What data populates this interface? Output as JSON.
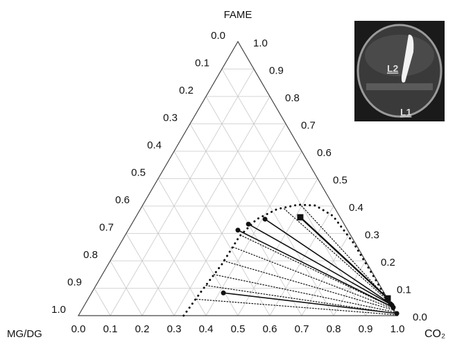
{
  "chart_data": {
    "type": "ternary",
    "axes": {
      "bottom": {
        "label": "CO₂",
        "ticks": [
          {
            "value": 0,
            "label": "0.0"
          },
          0.1,
          0.2,
          0.3,
          0.4,
          0.5,
          0.6,
          0.7,
          0.8,
          0.9,
          {
            "value": 1,
            "label": "1.0"
          }
        ]
      },
      "right": {
        "label": "FAME",
        "ticks": [
          {
            "value": 0,
            "label": "0.0"
          },
          0.1,
          0.2,
          0.3,
          0.4,
          0.5,
          0.6,
          0.7,
          0.8,
          0.9,
          {
            "value": 1,
            "label": "1.0"
          }
        ]
      },
      "left": {
        "label": "MG/DG",
        "ticks": [
          {
            "value": 0,
            "label": "0.0"
          },
          0.1,
          0.2,
          0.3,
          0.4,
          0.5,
          0.6,
          0.7,
          0.8,
          0.9,
          {
            "value": 1,
            "label": "1.0"
          }
        ]
      }
    },
    "grid": true,
    "series": [
      {
        "style": "dotted",
        "marker": "dot",
        "color": "#111",
        "co2": [
          0.33,
          0.341,
          0.356,
          0.36,
          0.383,
          0.429,
          0.487,
          0.542,
          0.616,
          0.731,
          0.859,
          0.947,
          1.0
        ],
        "fame": [
          0,
          0.088,
          0.188,
          0.289,
          0.352,
          0.389,
          0.405,
          0.402,
          0.364,
          0.264,
          0.138,
          0.05,
          0
        ]
      },
      {
        "style": "solid",
        "marker": "square",
        "color": "#111",
        "co2": [
          0.516,
          0.938
        ],
        "fame": [
          0.359,
          0.063
        ]
      },
      {
        "style": "solid",
        "marker": "circle",
        "color": "#111",
        "co2": [
          0.409,
          0.957
        ],
        "fame": [
          0.352,
          0.043
        ]
      },
      {
        "style": "solid",
        "marker": "circle",
        "color": "#111",
        "co2": [
          0.366,
          0.964
        ],
        "fame": [
          0.334,
          0.038
        ]
      },
      {
        "style": "solid",
        "marker": "circle",
        "color": "#111",
        "co2": [
          0.344,
          0.972
        ],
        "fame": [
          0.312,
          0.03
        ]
      },
      {
        "style": "solid",
        "marker": "circle",
        "color": "#111",
        "co2": [
          0.413,
          0.994
        ],
        "fame": [
          0.083,
          0.008
        ]
      },
      {
        "style": "dotted",
        "marker": "none",
        "color": "#111",
        "co2": [
          0.34,
          0.995
        ],
        "fame": [
          0.06,
          0.003
        ]
      },
      {
        "style": "dotted",
        "marker": "none",
        "color": "#111",
        "co2": [
          0.345,
          0.99
        ],
        "fame": [
          0.11,
          0.008
        ]
      },
      {
        "style": "dotted",
        "marker": "none",
        "color": "#111",
        "co2": [
          0.35,
          0.985
        ],
        "fame": [
          0.15,
          0.013
        ]
      },
      {
        "style": "dotted",
        "marker": "none",
        "color": "#111",
        "co2": [
          0.355,
          0.98
        ],
        "fame": [
          0.2,
          0.02
        ]
      },
      {
        "style": "dotted",
        "marker": "none",
        "color": "#111",
        "co2": [
          0.36,
          0.975
        ],
        "fame": [
          0.25,
          0.025
        ]
      },
      {
        "style": "dotted",
        "marker": "none",
        "color": "#111",
        "co2": [
          0.37,
          0.97
        ],
        "fame": [
          0.29,
          0.03
        ]
      },
      {
        "style": "dotted",
        "marker": "none",
        "color": "#111",
        "co2": [
          0.45,
          0.95
        ],
        "fame": [
          0.39,
          0.05
        ]
      },
      {
        "style": "dotted",
        "marker": "none",
        "color": "#111",
        "co2": [
          0.5,
          0.94
        ],
        "fame": [
          0.4,
          0.06
        ]
      }
    ],
    "inset": {
      "labels": [
        "L2",
        "L1"
      ]
    }
  }
}
